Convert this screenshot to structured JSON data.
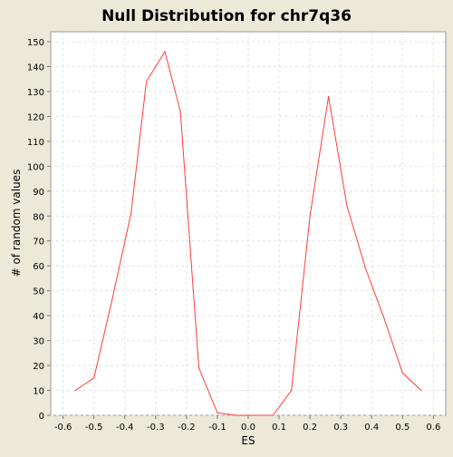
{
  "chart_data": {
    "type": "line",
    "title": "Null Distribution for chr7q36",
    "xlabel": "ES",
    "ylabel": "# of random values",
    "xlim": [
      -0.64,
      0.64
    ],
    "ylim": [
      0,
      154
    ],
    "x_ticks": [
      "-0.6",
      "-0.5",
      "-0.4",
      "-0.3",
      "-0.2",
      "-0.1",
      "0.0",
      "0.1",
      "0.2",
      "0.3",
      "0.4",
      "0.5",
      "0.6"
    ],
    "y_ticks": [
      "0",
      "10",
      "20",
      "30",
      "40",
      "50",
      "60",
      "70",
      "80",
      "90",
      "100",
      "110",
      "120",
      "130",
      "140",
      "150"
    ],
    "grid": true,
    "series": [
      {
        "color": "#ff3b3b",
        "x": [
          -0.56,
          -0.5,
          -0.44,
          -0.38,
          -0.33,
          -0.27,
          -0.22,
          -0.16,
          -0.1,
          -0.04,
          0.02,
          0.08,
          0.14,
          0.2,
          0.26,
          0.32,
          0.38,
          0.44,
          0.5,
          0.56
        ],
        "y": [
          10,
          15,
          47,
          81,
          134,
          146,
          122,
          19,
          1,
          0,
          0,
          0,
          10,
          80,
          128,
          84,
          59,
          39,
          17,
          10
        ]
      }
    ]
  }
}
